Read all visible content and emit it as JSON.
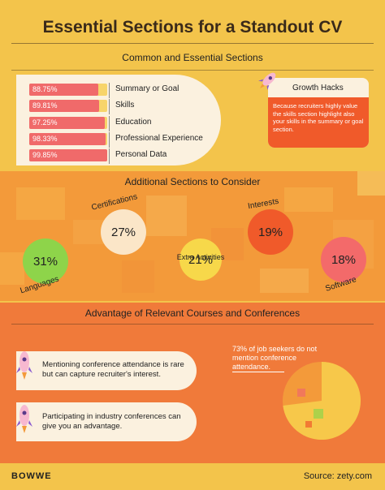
{
  "title": "Essential Sections for a Standout CV",
  "essential": {
    "heading": "Common and Essential Sections",
    "items": [
      {
        "pct": "88.75%",
        "value": 88.75,
        "label": "Summary or Goal"
      },
      {
        "pct": "89.81%",
        "value": 89.81,
        "label": "Skills"
      },
      {
        "pct": "97.25%",
        "value": 97.25,
        "label": "Education"
      },
      {
        "pct": "98.33%",
        "value": 98.33,
        "label": "Professional Experience"
      },
      {
        "pct": "99.85%",
        "value": 99.85,
        "label": "Personal Data"
      }
    ],
    "growth_hacks_title": "Growth Hacks",
    "growth_hacks_text": "Because recruiters highly value the skills section highlight also your skills in the summary or goal section."
  },
  "additional": {
    "heading": "Additional Sections to Consider",
    "items": [
      {
        "pct": "31%",
        "label": "Languages",
        "color": "#8ed44a"
      },
      {
        "pct": "27%",
        "label": "Certifications",
        "color": "#fbe6c8"
      },
      {
        "pct": "21%",
        "label": "Extra Activities",
        "color": "#f7d84a"
      },
      {
        "pct": "19%",
        "label": "Interests",
        "color": "#f05a2a"
      },
      {
        "pct": "18%",
        "label": "Software",
        "color": "#f36a6a"
      }
    ]
  },
  "courses": {
    "heading": "Advantage of Relevant Courses and Conferences",
    "card1": "Mentioning conference attendance is rare but can capture recruiter's interest.",
    "card2": "Participating in industry conferences can give you an advantage.",
    "note": "73% of job seekers do not mention conference attendance.",
    "pie_value": 73
  },
  "footer": {
    "logo": "BOWWE",
    "source": "Source: zety.com"
  },
  "colors": {
    "bar_fill": "#f06a6a",
    "bar_bg": "#f7d46a",
    "orange": "#f07a3a",
    "yellow": "#f3c44b"
  }
}
